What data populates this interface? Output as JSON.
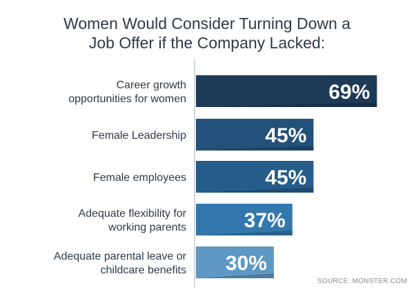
{
  "chart_data": {
    "type": "bar",
    "orientation": "horizontal",
    "title_lines": [
      "Women Would Consider Turning Down a",
      "Job Offer if the Company Lacked:"
    ],
    "categories": [
      [
        "Career growth",
        "opportunities for women"
      ],
      [
        "Female Leadership"
      ],
      [
        "Female employees"
      ],
      [
        "Adequate flexibility for",
        "working parents"
      ],
      [
        "Adequate parental leave or",
        "childcare benefits"
      ]
    ],
    "values": [
      69,
      45,
      45,
      37,
      30
    ],
    "value_labels": [
      "69%",
      "45%",
      "45%",
      "37%",
      "30%"
    ],
    "unit": "%",
    "bar_colors": [
      "#1d3a56",
      "#235179",
      "#255c89",
      "#3378ad",
      "#5f98c4"
    ],
    "axis_line": true,
    "grid": false,
    "legend": "none"
  },
  "source": "SOURCE: MONSTER.COM"
}
